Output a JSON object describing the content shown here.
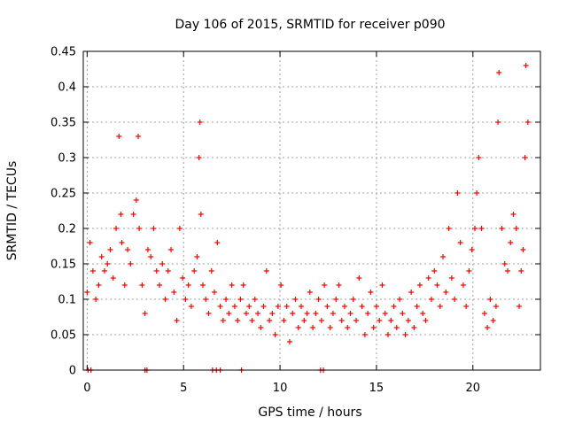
{
  "chart_data": {
    "type": "scatter",
    "title": "Day 106 of 2015, SRMTID for receiver p090",
    "xlabel": "GPS time / hours",
    "ylabel": "SRMTID / TECUs",
    "xlim": [
      -0.2,
      23.5
    ],
    "ylim": [
      0,
      0.45
    ],
    "xticks": [
      0,
      5,
      10,
      15,
      20
    ],
    "yticks": [
      0,
      0.05,
      0.1,
      0.15,
      0.2,
      0.25,
      0.3,
      0.35,
      0.4,
      0.45
    ],
    "xtick_labels": [
      "0",
      "5",
      "10",
      "15",
      "20"
    ],
    "ytick_labels": [
      "0",
      "0.05",
      "0.1",
      "0.15",
      "0.2",
      "0.25",
      "0.3",
      "0.35",
      "0.4",
      "0.45"
    ],
    "grid": true,
    "marker": "plus",
    "color": "#ff0000",
    "series": [
      {
        "name": "SRMTID",
        "x": [
          0.0,
          0.15,
          0.3,
          0.45,
          0.6,
          0.75,
          0.9,
          1.05,
          1.2,
          1.35,
          1.5,
          1.65,
          1.75,
          1.8,
          1.95,
          2.1,
          2.25,
          2.4,
          2.55,
          2.65,
          2.7,
          2.85,
          3.0,
          3.15,
          3.3,
          3.45,
          3.6,
          3.75,
          3.9,
          4.05,
          4.2,
          4.35,
          4.5,
          4.65,
          4.8,
          4.95,
          5.1,
          5.25,
          5.4,
          5.55,
          5.7,
          5.8,
          5.85,
          5.9,
          6.0,
          6.15,
          6.3,
          6.45,
          6.6,
          6.75,
          6.9,
          7.05,
          7.2,
          7.35,
          7.5,
          7.65,
          7.8,
          7.95,
          8.1,
          8.25,
          8.4,
          8.55,
          8.7,
          8.85,
          9.0,
          9.15,
          9.3,
          9.45,
          9.6,
          9.75,
          9.9,
          10.05,
          10.2,
          10.35,
          10.5,
          10.65,
          10.8,
          10.95,
          11.1,
          11.25,
          11.4,
          11.55,
          11.7,
          11.85,
          12.0,
          12.15,
          12.3,
          12.45,
          12.6,
          12.75,
          12.9,
          13.05,
          13.2,
          13.35,
          13.5,
          13.65,
          13.8,
          13.95,
          14.1,
          14.25,
          14.4,
          14.55,
          14.7,
          14.85,
          15.0,
          15.15,
          15.3,
          15.45,
          15.6,
          15.75,
          15.9,
          16.05,
          16.2,
          16.35,
          16.5,
          16.65,
          16.8,
          16.95,
          17.1,
          17.25,
          17.4,
          17.55,
          17.7,
          17.85,
          18.0,
          18.15,
          18.3,
          18.45,
          18.6,
          18.75,
          18.9,
          19.05,
          19.2,
          19.35,
          19.5,
          19.65,
          19.8,
          19.95,
          20.1,
          20.2,
          20.3,
          20.45,
          20.6,
          20.75,
          20.9,
          21.05,
          21.2,
          21.3,
          21.35,
          21.5,
          21.65,
          21.8,
          21.95,
          22.1,
          22.25,
          22.4,
          22.5,
          22.6,
          22.7,
          22.75,
          22.85,
          0.05,
          0.2,
          3.0,
          3.1,
          6.5,
          6.7,
          6.9,
          8.0,
          12.1,
          12.25
        ],
        "y": [
          0.11,
          0.18,
          0.14,
          0.1,
          0.12,
          0.16,
          0.14,
          0.15,
          0.17,
          0.13,
          0.2,
          0.33,
          0.22,
          0.18,
          0.12,
          0.17,
          0.15,
          0.22,
          0.24,
          0.33,
          0.2,
          0.12,
          0.08,
          0.17,
          0.16,
          0.2,
          0.14,
          0.12,
          0.15,
          0.1,
          0.14,
          0.17,
          0.11,
          0.07,
          0.2,
          0.13,
          0.1,
          0.12,
          0.09,
          0.14,
          0.16,
          0.3,
          0.35,
          0.22,
          0.12,
          0.1,
          0.08,
          0.14,
          0.11,
          0.18,
          0.09,
          0.07,
          0.1,
          0.08,
          0.12,
          0.09,
          0.07,
          0.1,
          0.12,
          0.08,
          0.09,
          0.07,
          0.1,
          0.08,
          0.06,
          0.09,
          0.14,
          0.07,
          0.08,
          0.05,
          0.09,
          0.12,
          0.07,
          0.09,
          0.04,
          0.08,
          0.1,
          0.06,
          0.09,
          0.07,
          0.08,
          0.11,
          0.06,
          0.08,
          0.1,
          0.07,
          0.12,
          0.09,
          0.06,
          0.08,
          0.1,
          0.12,
          0.07,
          0.09,
          0.06,
          0.08,
          0.1,
          0.07,
          0.13,
          0.09,
          0.05,
          0.08,
          0.11,
          0.06,
          0.09,
          0.07,
          0.12,
          0.08,
          0.05,
          0.07,
          0.09,
          0.06,
          0.1,
          0.08,
          0.05,
          0.07,
          0.11,
          0.06,
          0.09,
          0.12,
          0.08,
          0.07,
          0.13,
          0.1,
          0.14,
          0.12,
          0.09,
          0.16,
          0.11,
          0.2,
          0.13,
          0.1,
          0.25,
          0.18,
          0.12,
          0.09,
          0.14,
          0.17,
          0.2,
          0.25,
          0.3,
          0.2,
          0.08,
          0.06,
          0.1,
          0.07,
          0.09,
          0.35,
          0.42,
          0.2,
          0.15,
          0.14,
          0.18,
          0.22,
          0.2,
          0.09,
          0.14,
          0.17,
          0.3,
          0.43,
          0.35,
          0,
          0,
          0,
          0,
          0,
          0,
          0,
          0,
          0,
          0
        ]
      }
    ]
  }
}
